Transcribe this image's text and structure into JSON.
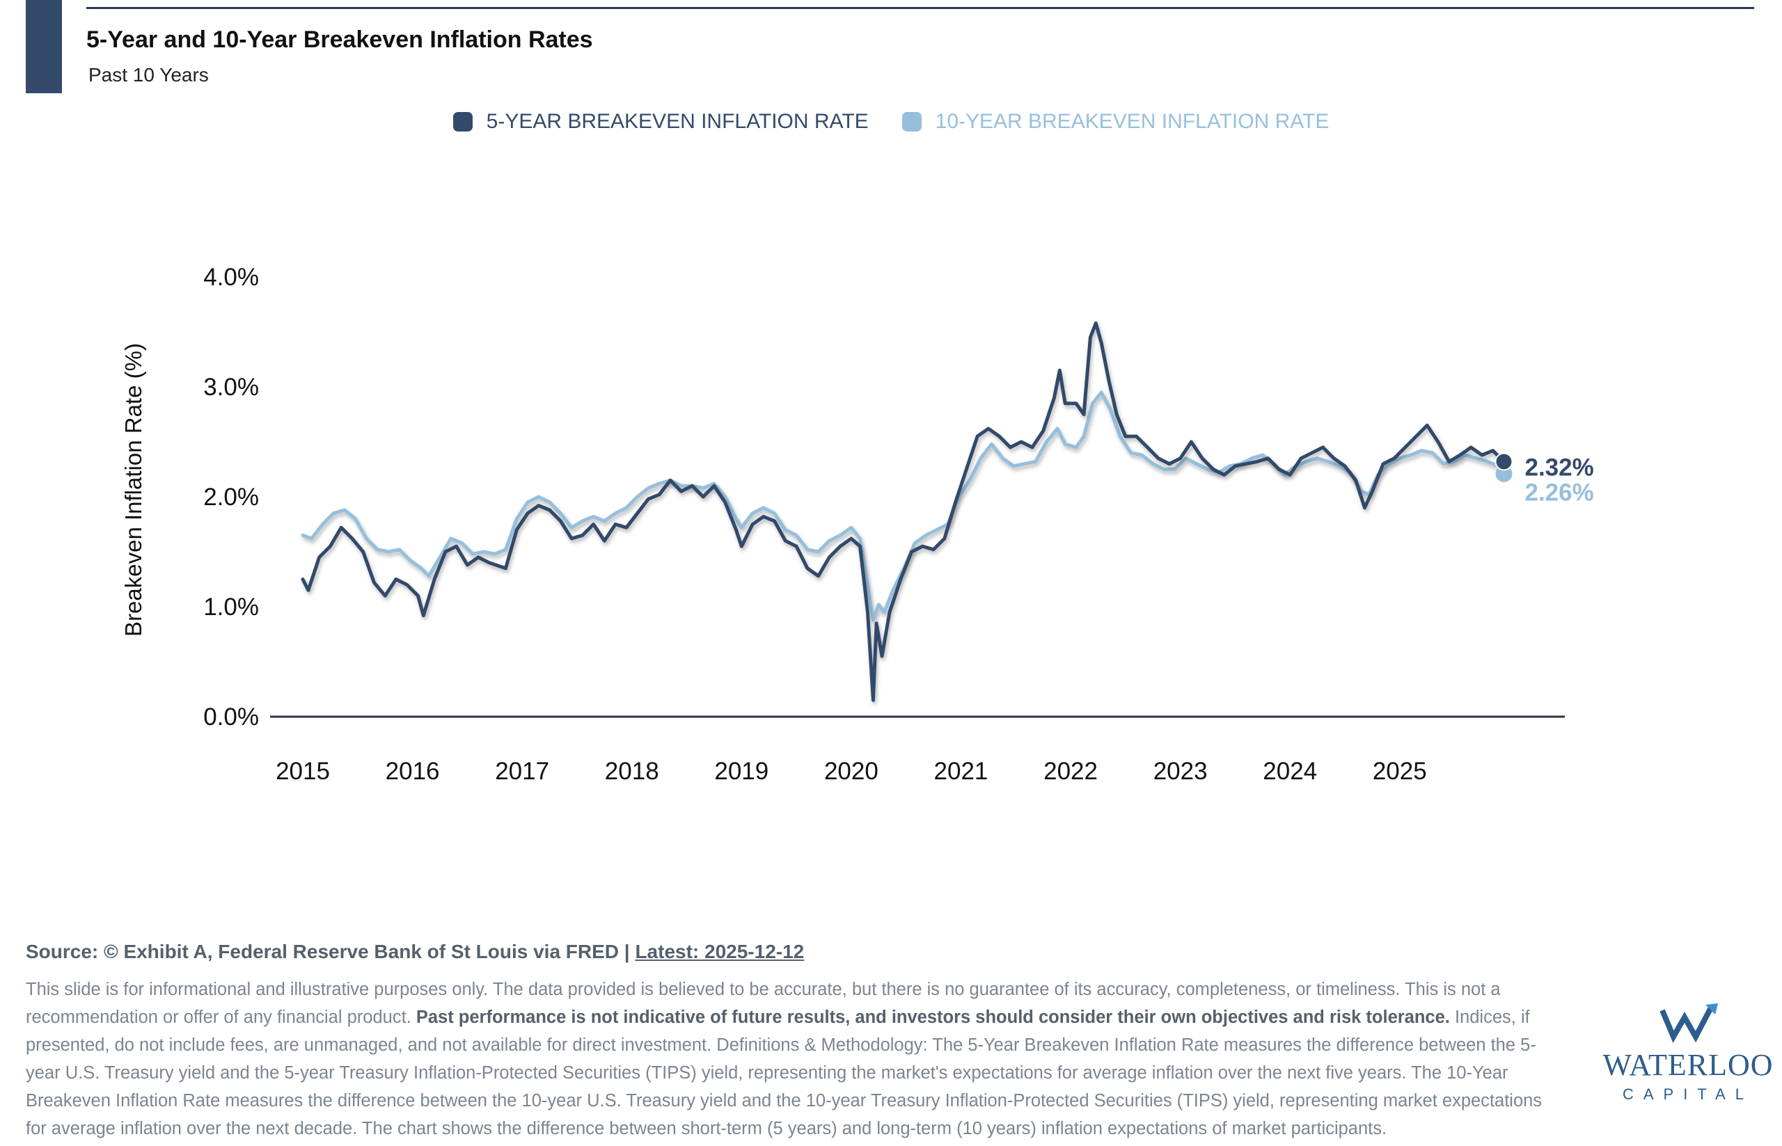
{
  "header": {
    "title": "5-Year and 10-Year Breakeven Inflation Rates",
    "subtitle": "Past 10 Years"
  },
  "legend": {
    "series_5y": "5-YEAR BREAKEVEN INFLATION RATE",
    "series_10y": "10-YEAR BREAKEVEN INFLATION RATE"
  },
  "colors": {
    "series_5y": "#334a6a",
    "series_10y": "#96bfdc",
    "accent": "#334a6a"
  },
  "chart_data": {
    "type": "line",
    "title": "5-Year and 10-Year Breakeven Inflation Rates",
    "subtitle": "Past 10 Years",
    "xlabel": "",
    "ylabel": "Breakeven Inflation Rate (%)",
    "ylim": [
      0,
      4
    ],
    "xlim": [
      2015,
      2026.15
    ],
    "yticks": [
      "0.0%",
      "1.0%",
      "2.0%",
      "3.0%",
      "4.0%"
    ],
    "xticks": [
      "2015",
      "2016",
      "2017",
      "2018",
      "2019",
      "2020",
      "2021",
      "2022",
      "2023",
      "2024",
      "2025"
    ],
    "grid": false,
    "legend_position": "top-center",
    "series": [
      {
        "name": "5-YEAR BREAKEVEN INFLATION RATE",
        "end_label": "2.32%",
        "points": [
          [
            2015.0,
            1.25
          ],
          [
            2015.05,
            1.15
          ],
          [
            2015.15,
            1.45
          ],
          [
            2015.25,
            1.55
          ],
          [
            2015.35,
            1.72
          ],
          [
            2015.45,
            1.62
          ],
          [
            2015.55,
            1.5
          ],
          [
            2015.65,
            1.22
          ],
          [
            2015.75,
            1.1
          ],
          [
            2015.85,
            1.25
          ],
          [
            2015.95,
            1.2
          ],
          [
            2016.05,
            1.1
          ],
          [
            2016.1,
            0.92
          ],
          [
            2016.2,
            1.25
          ],
          [
            2016.3,
            1.5
          ],
          [
            2016.4,
            1.55
          ],
          [
            2016.5,
            1.38
          ],
          [
            2016.6,
            1.45
          ],
          [
            2016.7,
            1.4
          ],
          [
            2016.85,
            1.35
          ],
          [
            2016.95,
            1.7
          ],
          [
            2017.05,
            1.85
          ],
          [
            2017.15,
            1.92
          ],
          [
            2017.25,
            1.88
          ],
          [
            2017.35,
            1.78
          ],
          [
            2017.45,
            1.62
          ],
          [
            2017.55,
            1.65
          ],
          [
            2017.65,
            1.75
          ],
          [
            2017.75,
            1.6
          ],
          [
            2017.85,
            1.75
          ],
          [
            2017.95,
            1.72
          ],
          [
            2018.05,
            1.85
          ],
          [
            2018.15,
            1.98
          ],
          [
            2018.25,
            2.02
          ],
          [
            2018.35,
            2.15
          ],
          [
            2018.45,
            2.05
          ],
          [
            2018.55,
            2.1
          ],
          [
            2018.65,
            2.0
          ],
          [
            2018.75,
            2.1
          ],
          [
            2018.85,
            1.95
          ],
          [
            2018.95,
            1.7
          ],
          [
            2019.0,
            1.55
          ],
          [
            2019.1,
            1.75
          ],
          [
            2019.2,
            1.82
          ],
          [
            2019.3,
            1.78
          ],
          [
            2019.4,
            1.6
          ],
          [
            2019.5,
            1.55
          ],
          [
            2019.6,
            1.35
          ],
          [
            2019.7,
            1.28
          ],
          [
            2019.8,
            1.45
          ],
          [
            2019.9,
            1.55
          ],
          [
            2020.0,
            1.62
          ],
          [
            2020.08,
            1.55
          ],
          [
            2020.15,
            0.95
          ],
          [
            2020.2,
            0.15
          ],
          [
            2020.23,
            0.85
          ],
          [
            2020.28,
            0.55
          ],
          [
            2020.35,
            0.95
          ],
          [
            2020.45,
            1.25
          ],
          [
            2020.55,
            1.5
          ],
          [
            2020.65,
            1.55
          ],
          [
            2020.75,
            1.52
          ],
          [
            2020.85,
            1.62
          ],
          [
            2020.95,
            1.95
          ],
          [
            2021.05,
            2.25
          ],
          [
            2021.15,
            2.55
          ],
          [
            2021.25,
            2.62
          ],
          [
            2021.35,
            2.55
          ],
          [
            2021.45,
            2.45
          ],
          [
            2021.55,
            2.5
          ],
          [
            2021.65,
            2.45
          ],
          [
            2021.75,
            2.6
          ],
          [
            2021.85,
            2.9
          ],
          [
            2021.9,
            3.15
          ],
          [
            2021.95,
            2.85
          ],
          [
            2022.05,
            2.85
          ],
          [
            2022.12,
            2.75
          ],
          [
            2022.18,
            3.45
          ],
          [
            2022.23,
            3.58
          ],
          [
            2022.28,
            3.4
          ],
          [
            2022.35,
            3.05
          ],
          [
            2022.42,
            2.75
          ],
          [
            2022.5,
            2.55
          ],
          [
            2022.6,
            2.55
          ],
          [
            2022.7,
            2.45
          ],
          [
            2022.8,
            2.35
          ],
          [
            2022.9,
            2.3
          ],
          [
            2023.0,
            2.35
          ],
          [
            2023.1,
            2.5
          ],
          [
            2023.2,
            2.35
          ],
          [
            2023.3,
            2.25
          ],
          [
            2023.4,
            2.2
          ],
          [
            2023.5,
            2.28
          ],
          [
            2023.6,
            2.3
          ],
          [
            2023.7,
            2.32
          ],
          [
            2023.8,
            2.35
          ],
          [
            2023.9,
            2.25
          ],
          [
            2024.0,
            2.2
          ],
          [
            2024.1,
            2.35
          ],
          [
            2024.2,
            2.4
          ],
          [
            2024.3,
            2.45
          ],
          [
            2024.4,
            2.35
          ],
          [
            2024.5,
            2.28
          ],
          [
            2024.6,
            2.15
          ],
          [
            2024.68,
            1.9
          ],
          [
            2024.75,
            2.05
          ],
          [
            2024.85,
            2.3
          ],
          [
            2024.95,
            2.35
          ],
          [
            2025.05,
            2.45
          ],
          [
            2025.15,
            2.55
          ],
          [
            2025.25,
            2.65
          ],
          [
            2025.35,
            2.5
          ],
          [
            2025.45,
            2.32
          ],
          [
            2025.55,
            2.38
          ],
          [
            2025.65,
            2.45
          ],
          [
            2025.75,
            2.38
          ],
          [
            2025.85,
            2.42
          ],
          [
            2025.95,
            2.32
          ]
        ]
      },
      {
        "name": "10-YEAR BREAKEVEN INFLATION RATE",
        "end_label": "2.26%",
        "points": [
          [
            2015.0,
            1.65
          ],
          [
            2015.08,
            1.62
          ],
          [
            2015.18,
            1.75
          ],
          [
            2015.28,
            1.85
          ],
          [
            2015.38,
            1.88
          ],
          [
            2015.48,
            1.8
          ],
          [
            2015.58,
            1.62
          ],
          [
            2015.68,
            1.52
          ],
          [
            2015.78,
            1.5
          ],
          [
            2015.88,
            1.52
          ],
          [
            2015.98,
            1.42
          ],
          [
            2016.08,
            1.35
          ],
          [
            2016.15,
            1.28
          ],
          [
            2016.25,
            1.45
          ],
          [
            2016.35,
            1.62
          ],
          [
            2016.45,
            1.58
          ],
          [
            2016.55,
            1.48
          ],
          [
            2016.65,
            1.5
          ],
          [
            2016.75,
            1.48
          ],
          [
            2016.85,
            1.52
          ],
          [
            2016.95,
            1.8
          ],
          [
            2017.05,
            1.95
          ],
          [
            2017.15,
            2.0
          ],
          [
            2017.25,
            1.95
          ],
          [
            2017.35,
            1.85
          ],
          [
            2017.45,
            1.72
          ],
          [
            2017.55,
            1.78
          ],
          [
            2017.65,
            1.82
          ],
          [
            2017.75,
            1.78
          ],
          [
            2017.85,
            1.85
          ],
          [
            2017.95,
            1.9
          ],
          [
            2018.05,
            2.0
          ],
          [
            2018.15,
            2.08
          ],
          [
            2018.25,
            2.12
          ],
          [
            2018.35,
            2.15
          ],
          [
            2018.45,
            2.1
          ],
          [
            2018.55,
            2.1
          ],
          [
            2018.65,
            2.08
          ],
          [
            2018.75,
            2.12
          ],
          [
            2018.85,
            2.0
          ],
          [
            2018.95,
            1.8
          ],
          [
            2019.0,
            1.72
          ],
          [
            2019.1,
            1.85
          ],
          [
            2019.2,
            1.9
          ],
          [
            2019.3,
            1.85
          ],
          [
            2019.4,
            1.7
          ],
          [
            2019.5,
            1.65
          ],
          [
            2019.6,
            1.52
          ],
          [
            2019.7,
            1.5
          ],
          [
            2019.8,
            1.6
          ],
          [
            2019.9,
            1.65
          ],
          [
            2020.0,
            1.72
          ],
          [
            2020.08,
            1.62
          ],
          [
            2020.15,
            1.2
          ],
          [
            2020.2,
            0.88
          ],
          [
            2020.25,
            1.02
          ],
          [
            2020.3,
            0.95
          ],
          [
            2020.38,
            1.15
          ],
          [
            2020.48,
            1.35
          ],
          [
            2020.58,
            1.58
          ],
          [
            2020.68,
            1.65
          ],
          [
            2020.78,
            1.7
          ],
          [
            2020.88,
            1.75
          ],
          [
            2020.98,
            2.0
          ],
          [
            2021.08,
            2.15
          ],
          [
            2021.18,
            2.35
          ],
          [
            2021.28,
            2.48
          ],
          [
            2021.38,
            2.35
          ],
          [
            2021.48,
            2.28
          ],
          [
            2021.58,
            2.3
          ],
          [
            2021.68,
            2.32
          ],
          [
            2021.78,
            2.5
          ],
          [
            2021.88,
            2.62
          ],
          [
            2021.95,
            2.48
          ],
          [
            2022.05,
            2.45
          ],
          [
            2022.12,
            2.55
          ],
          [
            2022.2,
            2.85
          ],
          [
            2022.28,
            2.95
          ],
          [
            2022.36,
            2.8
          ],
          [
            2022.45,
            2.55
          ],
          [
            2022.55,
            2.4
          ],
          [
            2022.65,
            2.38
          ],
          [
            2022.75,
            2.3
          ],
          [
            2022.85,
            2.25
          ],
          [
            2022.95,
            2.25
          ],
          [
            2023.05,
            2.35
          ],
          [
            2023.15,
            2.3
          ],
          [
            2023.25,
            2.25
          ],
          [
            2023.35,
            2.22
          ],
          [
            2023.45,
            2.28
          ],
          [
            2023.55,
            2.3
          ],
          [
            2023.65,
            2.35
          ],
          [
            2023.75,
            2.38
          ],
          [
            2023.85,
            2.3
          ],
          [
            2023.95,
            2.2
          ],
          [
            2024.05,
            2.28
          ],
          [
            2024.15,
            2.32
          ],
          [
            2024.25,
            2.35
          ],
          [
            2024.35,
            2.32
          ],
          [
            2024.45,
            2.28
          ],
          [
            2024.55,
            2.22
          ],
          [
            2024.65,
            2.05
          ],
          [
            2024.72,
            2.02
          ],
          [
            2024.8,
            2.2
          ],
          [
            2024.9,
            2.3
          ],
          [
            2025.0,
            2.35
          ],
          [
            2025.1,
            2.38
          ],
          [
            2025.2,
            2.42
          ],
          [
            2025.3,
            2.4
          ],
          [
            2025.4,
            2.3
          ],
          [
            2025.5,
            2.32
          ],
          [
            2025.6,
            2.38
          ],
          [
            2025.7,
            2.35
          ],
          [
            2025.8,
            2.32
          ],
          [
            2025.95,
            2.26
          ]
        ]
      }
    ]
  },
  "footer": {
    "source_text": "Source: © Exhibit A, Federal Reserve Bank of St Louis via FRED | ",
    "latest": "Latest: 2025-12-12",
    "disclaimer_1": "This slide is for informational and illustrative purposes only. The data provided is believed to be accurate, but there is no guarantee of its accuracy, completeness, or timeliness. This is not a recommendation or offer of any financial product. ",
    "disclaimer_bold": "Past performance is not indicative of future results, and investors should consider their own objectives and risk tolerance.",
    "disclaimer_2": " Indices, if presented, do not include fees, are unmanaged, and not available for direct investment. Definitions & Methodology: The 5-Year Breakeven Inflation Rate measures the difference between the 5-year U.S. Treasury yield and the 5-year Treasury Inflation-Protected Securities (TIPS) yield, representing the market's expectations for average inflation over the next five years. The 10-Year Breakeven Inflation Rate measures the difference between the 10-year U.S. Treasury yield and the 10-year Treasury Inflation-Protected Securities (TIPS) yield, representing market expectations for average inflation over the next decade. The chart shows the difference between short-term (5 years) and long-term (10 years) inflation expectations of market participants."
  },
  "logo": {
    "name": "WATERLOO",
    "sub": "CAPITAL"
  }
}
